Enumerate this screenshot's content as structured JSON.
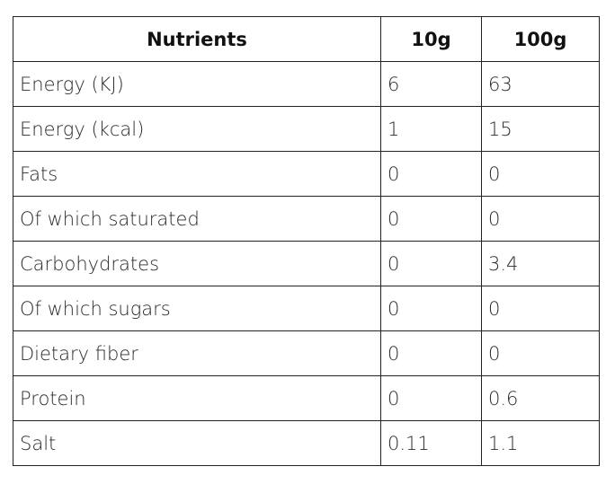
{
  "table": {
    "header": [
      "Nutrients",
      "10g",
      "100g"
    ],
    "rows": [
      [
        "Energy (KJ)",
        "6",
        "63"
      ],
      [
        "Energy (kcal)",
        "1",
        "15"
      ],
      [
        "Fats",
        "0",
        "0"
      ],
      [
        "Of which saturated",
        "0",
        "0"
      ],
      [
        "Carbohydrates",
        "0",
        "3.4"
      ],
      [
        "Of which sugars",
        "0",
        "0"
      ],
      [
        "Dietary fiber",
        "0",
        "0"
      ],
      [
        "Protein",
        "0",
        "0.6"
      ],
      [
        "Salt",
        "0.11",
        "1.1"
      ]
    ]
  }
}
